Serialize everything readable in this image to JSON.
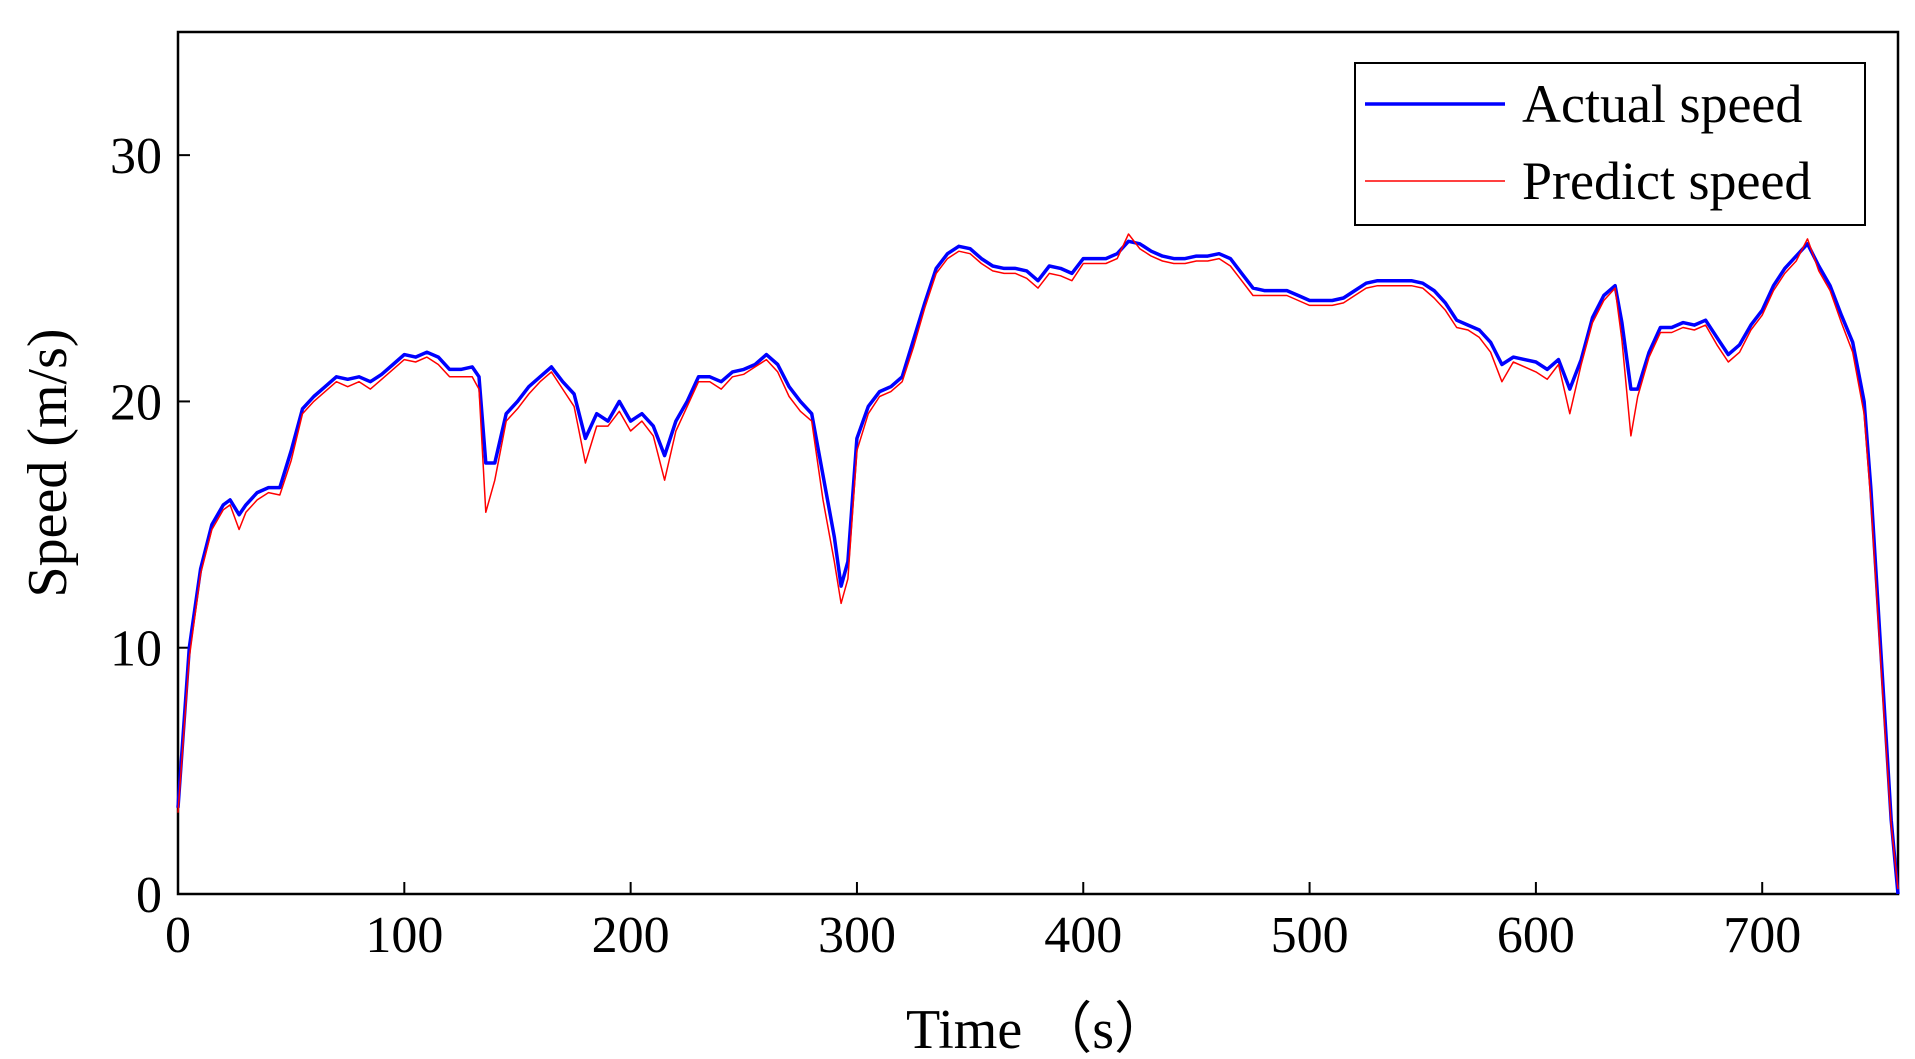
{
  "chart_data": {
    "type": "line",
    "title": "",
    "xlabel": "Time （s）",
    "ylabel": "Speed (m/s)",
    "xlim": [
      0,
      760
    ],
    "ylim": [
      0,
      35
    ],
    "xticks": [
      0,
      100,
      200,
      300,
      400,
      500,
      600,
      700
    ],
    "yticks": [
      0,
      10,
      20,
      30
    ],
    "grid": false,
    "legend_position": "top-right",
    "series": [
      {
        "name": "Actual speed",
        "color": "#0000ff",
        "x": [
          0,
          5,
          10,
          15,
          20,
          23,
          27,
          30,
          35,
          40,
          45,
          50,
          55,
          60,
          65,
          70,
          75,
          80,
          85,
          90,
          95,
          100,
          105,
          110,
          115,
          120,
          125,
          130,
          133,
          136,
          140,
          145,
          150,
          155,
          160,
          165,
          170,
          175,
          180,
          185,
          190,
          195,
          200,
          205,
          210,
          215,
          220,
          225,
          230,
          235,
          240,
          245,
          250,
          255,
          260,
          265,
          270,
          275,
          280,
          285,
          290,
          293,
          296,
          300,
          305,
          310,
          315,
          320,
          325,
          330,
          335,
          340,
          345,
          350,
          355,
          360,
          365,
          370,
          375,
          380,
          385,
          390,
          395,
          400,
          405,
          410,
          415,
          420,
          425,
          430,
          435,
          440,
          445,
          450,
          455,
          460,
          465,
          470,
          475,
          480,
          485,
          490,
          495,
          500,
          505,
          510,
          515,
          520,
          525,
          530,
          535,
          540,
          545,
          550,
          555,
          560,
          565,
          570,
          575,
          580,
          585,
          590,
          595,
          600,
          605,
          610,
          615,
          620,
          625,
          630,
          635,
          638,
          642,
          645,
          650,
          655,
          660,
          665,
          670,
          675,
          680,
          685,
          690,
          695,
          700,
          705,
          710,
          715,
          720,
          725,
          730,
          735,
          740,
          745,
          748,
          751,
          754,
          757,
          760
        ],
        "y": [
          3.5,
          10,
          13.2,
          15.0,
          15.8,
          16.0,
          15.4,
          15.8,
          16.3,
          16.5,
          16.5,
          18.0,
          19.7,
          20.2,
          20.6,
          21.0,
          20.9,
          21.0,
          20.8,
          21.1,
          21.5,
          21.9,
          21.8,
          22.0,
          21.8,
          21.3,
          21.3,
          21.4,
          21.0,
          17.5,
          17.5,
          19.5,
          20.0,
          20.6,
          21.0,
          21.4,
          20.8,
          20.3,
          18.5,
          19.5,
          19.2,
          20.0,
          19.2,
          19.5,
          19.0,
          17.8,
          19.2,
          20.0,
          21.0,
          21.0,
          20.8,
          21.2,
          21.3,
          21.5,
          21.9,
          21.5,
          20.6,
          20.0,
          19.5,
          17.0,
          14.5,
          12.5,
          13.5,
          18.5,
          19.8,
          20.4,
          20.6,
          21.0,
          22.5,
          24.0,
          25.4,
          26.0,
          26.3,
          26.2,
          25.8,
          25.5,
          25.4,
          25.4,
          25.3,
          24.9,
          25.5,
          25.4,
          25.2,
          25.8,
          25.8,
          25.8,
          26.0,
          26.5,
          26.4,
          26.1,
          25.9,
          25.8,
          25.8,
          25.9,
          25.9,
          26.0,
          25.8,
          25.2,
          24.6,
          24.5,
          24.5,
          24.5,
          24.3,
          24.1,
          24.1,
          24.1,
          24.2,
          24.5,
          24.8,
          24.9,
          24.9,
          24.9,
          24.9,
          24.8,
          24.5,
          24.0,
          23.3,
          23.1,
          22.9,
          22.4,
          21.5,
          21.8,
          21.7,
          21.6,
          21.3,
          21.7,
          20.5,
          21.7,
          23.4,
          24.3,
          24.7,
          23.2,
          20.5,
          20.5,
          22.0,
          23.0,
          23.0,
          23.2,
          23.1,
          23.3,
          22.6,
          21.9,
          22.3,
          23.1,
          23.7,
          24.7,
          25.4,
          25.9,
          26.4,
          25.5,
          24.7,
          23.5,
          22.4,
          20.0,
          16.5,
          12.0,
          7.5,
          3.0,
          0.0
        ]
      },
      {
        "name": "Predict speed",
        "color": "#ff0000",
        "x": [
          0,
          5,
          10,
          15,
          20,
          23,
          27,
          30,
          35,
          40,
          45,
          50,
          55,
          60,
          65,
          70,
          75,
          80,
          85,
          90,
          95,
          100,
          105,
          110,
          115,
          120,
          125,
          130,
          133,
          136,
          140,
          145,
          150,
          155,
          160,
          165,
          170,
          175,
          180,
          185,
          190,
          195,
          200,
          205,
          210,
          215,
          220,
          225,
          230,
          235,
          240,
          245,
          250,
          255,
          260,
          265,
          270,
          275,
          280,
          285,
          290,
          293,
          296,
          300,
          305,
          310,
          315,
          320,
          325,
          330,
          335,
          340,
          345,
          350,
          355,
          360,
          365,
          370,
          375,
          380,
          385,
          390,
          395,
          400,
          405,
          410,
          415,
          420,
          425,
          430,
          435,
          440,
          445,
          450,
          455,
          460,
          465,
          470,
          475,
          480,
          485,
          490,
          495,
          500,
          505,
          510,
          515,
          520,
          525,
          530,
          535,
          540,
          545,
          550,
          555,
          560,
          565,
          570,
          575,
          580,
          585,
          590,
          595,
          600,
          605,
          610,
          615,
          620,
          625,
          630,
          635,
          638,
          642,
          645,
          650,
          655,
          660,
          665,
          670,
          675,
          680,
          685,
          690,
          695,
          700,
          705,
          710,
          715,
          720,
          725,
          730,
          735,
          740,
          745,
          748,
          751,
          754,
          757,
          760
        ],
        "y": [
          3.3,
          9.6,
          13.0,
          14.8,
          15.6,
          15.8,
          14.8,
          15.5,
          16.0,
          16.3,
          16.2,
          17.6,
          19.5,
          20.0,
          20.4,
          20.8,
          20.6,
          20.8,
          20.5,
          20.9,
          21.3,
          21.7,
          21.6,
          21.8,
          21.5,
          21.0,
          21.0,
          21.0,
          20.5,
          15.5,
          16.8,
          19.2,
          19.7,
          20.3,
          20.8,
          21.2,
          20.5,
          19.8,
          17.5,
          19.0,
          19.0,
          19.6,
          18.8,
          19.2,
          18.6,
          16.8,
          18.8,
          19.8,
          20.8,
          20.8,
          20.5,
          21.0,
          21.1,
          21.4,
          21.7,
          21.2,
          20.2,
          19.6,
          19.2,
          16.0,
          13.5,
          11.8,
          12.8,
          18.0,
          19.5,
          20.2,
          20.4,
          20.8,
          22.2,
          23.8,
          25.2,
          25.8,
          26.1,
          26.0,
          25.6,
          25.3,
          25.2,
          25.2,
          25.0,
          24.6,
          25.2,
          25.1,
          24.9,
          25.6,
          25.6,
          25.6,
          25.8,
          26.8,
          26.2,
          25.9,
          25.7,
          25.6,
          25.6,
          25.7,
          25.7,
          25.8,
          25.5,
          24.9,
          24.3,
          24.3,
          24.3,
          24.3,
          24.1,
          23.9,
          23.9,
          23.9,
          24.0,
          24.3,
          24.6,
          24.7,
          24.7,
          24.7,
          24.7,
          24.6,
          24.2,
          23.7,
          23.0,
          22.9,
          22.6,
          22.0,
          20.8,
          21.6,
          21.4,
          21.2,
          20.9,
          21.5,
          19.5,
          21.5,
          23.2,
          24.1,
          24.6,
          22.5,
          18.6,
          20.2,
          21.8,
          22.8,
          22.8,
          23.0,
          22.9,
          23.1,
          22.3,
          21.6,
          22.0,
          22.9,
          23.5,
          24.5,
          25.2,
          25.7,
          26.6,
          25.3,
          24.5,
          23.2,
          22.0,
          19.5,
          16.0,
          11.5,
          7.0,
          2.8,
          0.2
        ]
      }
    ]
  }
}
